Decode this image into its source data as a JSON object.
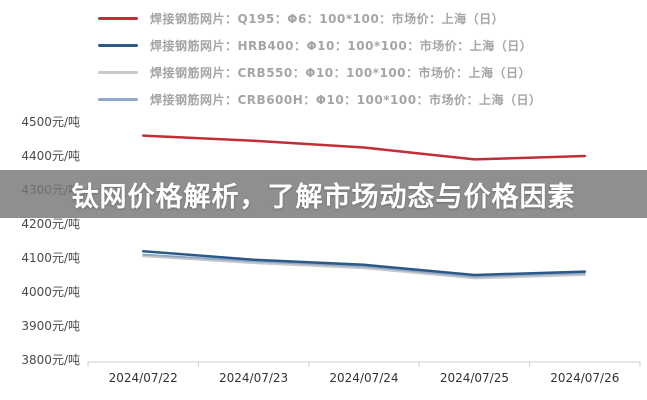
{
  "banner": {
    "text": "钛网价格解析，了解市场动态与价格因素"
  },
  "chart_data": {
    "type": "line",
    "title": "",
    "xlabel": "",
    "ylabel": "",
    "categories": [
      "2024/07/22",
      "2024/07/23",
      "2024/07/24",
      "2024/07/25",
      "2024/07/26"
    ],
    "series": [
      {
        "name": "焊接钢筋网片：Q195：Φ6：100*100：市场价：上海（日）",
        "color": "#c12e34",
        "values": [
          4460,
          4445,
          4425,
          4390,
          4400
        ]
      },
      {
        "name": "焊接钢筋网片：HRB400：Φ10：100*100：市场价：上海（日）",
        "color": "#2d5986",
        "values": [
          4120,
          4095,
          4080,
          4050,
          4060
        ]
      },
      {
        "name": "焊接钢筋网片：CRB550：Φ10：100*100：市场价：上海（日）",
        "color": "#c9c9c9",
        "values": [
          4105,
          4085,
          4070,
          4040,
          4050
        ]
      },
      {
        "name": "焊接钢筋网片：CRB600H：Φ10：100*100：市场价：上海（日）",
        "color": "#8ea9c9",
        "values": [
          4110,
          4090,
          4075,
          4045,
          4055
        ]
      }
    ],
    "ylim": [
      3800,
      4500
    ],
    "ytick_values": [
      4500,
      4400,
      4300,
      4200,
      4100,
      4000,
      3900,
      3800
    ],
    "ytick_labels": [
      "4500元/吨",
      "4400元/吨",
      "4300元/吨",
      "4200元/吨",
      "4100元/吨",
      "4000元/吨",
      "3900元/吨",
      "3800元/吨"
    ],
    "y_unit": "元/吨",
    "grid": false,
    "legend_position": "top"
  }
}
